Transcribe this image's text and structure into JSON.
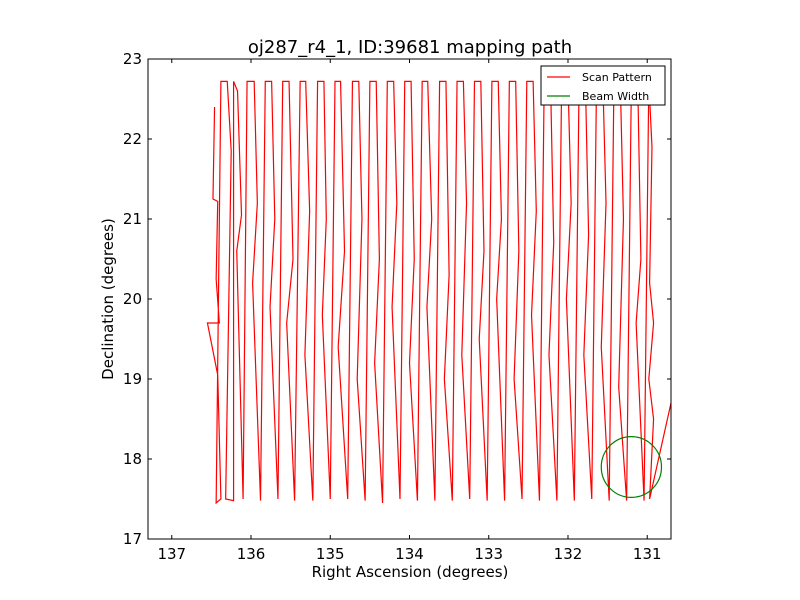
{
  "chart_data": {
    "type": "line",
    "title": "oj287_r4_1, ID:39681 mapping path",
    "xlabel": "Right Ascension (degrees)",
    "ylabel": "Declination (degrees)",
    "xlim": [
      137.3,
      130.7
    ],
    "ylim": [
      17,
      23
    ],
    "x_reversed": true,
    "x_ticks": [
      "137",
      "136",
      "135",
      "134",
      "133",
      "132",
      "131"
    ],
    "y_ticks": [
      "17",
      "18",
      "19",
      "20",
      "21",
      "22",
      "23"
    ],
    "legend_position": "top-right",
    "series": [
      {
        "name": "Scan Pattern",
        "color": "#ff0000",
        "path": [
          [
            136.46,
            22.4
          ],
          [
            136.48,
            21.25
          ],
          [
            136.42,
            21.22
          ],
          [
            136.44,
            20.25
          ],
          [
            136.4,
            19.7
          ],
          [
            136.55,
            19.7
          ],
          [
            136.42,
            19.05
          ],
          [
            136.38,
            17.5
          ],
          [
            136.44,
            17.45
          ],
          [
            136.38,
            22.72
          ],
          [
            136.3,
            22.72
          ],
          [
            136.25,
            21.85
          ],
          [
            136.32,
            17.5
          ],
          [
            136.22,
            17.48
          ],
          [
            136.22,
            22.72
          ],
          [
            136.17,
            22.6
          ],
          [
            136.12,
            21.05
          ],
          [
            136.18,
            20.6
          ],
          [
            136.1,
            17.5
          ],
          [
            136.05,
            22.72
          ],
          [
            135.96,
            22.72
          ],
          [
            135.92,
            21.2
          ],
          [
            135.98,
            20.2
          ],
          [
            135.88,
            17.48
          ],
          [
            135.82,
            22.72
          ],
          [
            135.74,
            22.72
          ],
          [
            135.7,
            21.0
          ],
          [
            135.76,
            19.9
          ],
          [
            135.66,
            17.5
          ],
          [
            135.6,
            22.72
          ],
          [
            135.52,
            22.72
          ],
          [
            135.47,
            20.5
          ],
          [
            135.55,
            19.7
          ],
          [
            135.45,
            17.48
          ],
          [
            135.38,
            22.72
          ],
          [
            135.31,
            22.72
          ],
          [
            135.26,
            21.1
          ],
          [
            135.32,
            19.3
          ],
          [
            135.22,
            17.48
          ],
          [
            135.16,
            22.72
          ],
          [
            135.08,
            22.72
          ],
          [
            135.05,
            21.0
          ],
          [
            135.1,
            19.8
          ],
          [
            135.0,
            17.5
          ],
          [
            134.94,
            22.72
          ],
          [
            134.87,
            22.72
          ],
          [
            134.82,
            20.6
          ],
          [
            134.9,
            19.4
          ],
          [
            134.78,
            17.5
          ],
          [
            134.72,
            22.72
          ],
          [
            134.64,
            22.72
          ],
          [
            134.6,
            21.0
          ],
          [
            134.66,
            19.0
          ],
          [
            134.56,
            17.48
          ],
          [
            134.5,
            22.72
          ],
          [
            134.42,
            22.72
          ],
          [
            134.38,
            20.5
          ],
          [
            134.44,
            19.2
          ],
          [
            134.34,
            17.45
          ],
          [
            134.28,
            22.72
          ],
          [
            134.2,
            22.72
          ],
          [
            134.16,
            21.2
          ],
          [
            134.22,
            19.9
          ],
          [
            134.12,
            17.5
          ],
          [
            134.06,
            22.72
          ],
          [
            133.98,
            22.72
          ],
          [
            133.94,
            20.5
          ],
          [
            134.0,
            19.2
          ],
          [
            133.9,
            17.48
          ],
          [
            133.84,
            22.72
          ],
          [
            133.77,
            22.72
          ],
          [
            133.72,
            21.0
          ],
          [
            133.78,
            19.9
          ],
          [
            133.68,
            17.48
          ],
          [
            133.62,
            22.72
          ],
          [
            133.54,
            22.72
          ],
          [
            133.5,
            20.3
          ],
          [
            133.56,
            19.0
          ],
          [
            133.46,
            17.48
          ],
          [
            133.4,
            22.72
          ],
          [
            133.32,
            22.72
          ],
          [
            133.28,
            21.2
          ],
          [
            133.34,
            19.3
          ],
          [
            133.24,
            17.5
          ],
          [
            133.18,
            22.72
          ],
          [
            133.1,
            22.72
          ],
          [
            133.06,
            20.6
          ],
          [
            133.12,
            19.5
          ],
          [
            133.02,
            17.48
          ],
          [
            132.96,
            22.72
          ],
          [
            132.88,
            22.72
          ],
          [
            132.84,
            21.0
          ],
          [
            132.9,
            20.0
          ],
          [
            132.8,
            17.48
          ],
          [
            132.74,
            22.72
          ],
          [
            132.66,
            22.72
          ],
          [
            132.62,
            20.6
          ],
          [
            132.68,
            19.0
          ],
          [
            132.58,
            17.5
          ],
          [
            132.52,
            22.72
          ],
          [
            132.44,
            22.72
          ],
          [
            132.4,
            21.1
          ],
          [
            132.46,
            19.8
          ],
          [
            132.36,
            17.48
          ],
          [
            132.3,
            22.72
          ],
          [
            132.22,
            22.72
          ],
          [
            132.18,
            20.7
          ],
          [
            132.24,
            19.3
          ],
          [
            132.14,
            17.48
          ],
          [
            132.08,
            22.72
          ],
          [
            132.0,
            22.72
          ],
          [
            131.96,
            21.2
          ],
          [
            132.02,
            20.0
          ],
          [
            131.92,
            17.48
          ],
          [
            131.86,
            22.72
          ],
          [
            131.78,
            22.72
          ],
          [
            131.74,
            20.8
          ],
          [
            131.8,
            19.3
          ],
          [
            131.7,
            17.5
          ],
          [
            131.64,
            22.72
          ],
          [
            131.56,
            22.72
          ],
          [
            131.52,
            21.2
          ],
          [
            131.58,
            19.4
          ],
          [
            131.48,
            17.48
          ],
          [
            131.42,
            22.72
          ],
          [
            131.34,
            22.72
          ],
          [
            131.3,
            21.0
          ],
          [
            131.36,
            18.9
          ],
          [
            131.26,
            17.48
          ],
          [
            131.2,
            22.72
          ],
          [
            131.12,
            22.72
          ],
          [
            131.08,
            20.5
          ],
          [
            131.14,
            19.7
          ],
          [
            131.04,
            17.48
          ],
          [
            130.98,
            22.72
          ],
          [
            130.94,
            21.9
          ],
          [
            130.97,
            20.2
          ],
          [
            130.92,
            19.7
          ],
          [
            130.98,
            19.0
          ],
          [
            130.92,
            18.5
          ],
          [
            130.97,
            17.5
          ],
          [
            130.7,
            18.7
          ]
        ]
      },
      {
        "name": "Beam Width",
        "color": "#008000",
        "center": [
          131.2,
          17.9
        ],
        "radius": 0.38
      }
    ]
  }
}
